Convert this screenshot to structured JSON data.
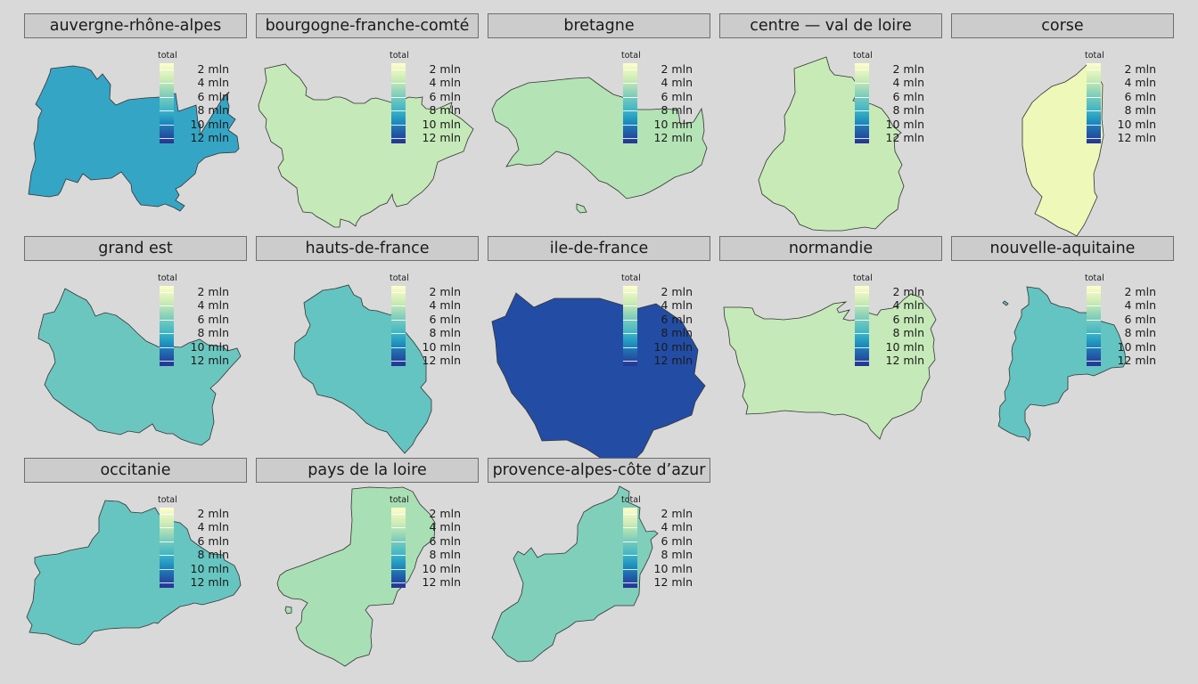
{
  "legend": {
    "title": "total",
    "labels": [
      "2 mln",
      "4 mln",
      "6 mln",
      "8 mln",
      "10 mln",
      "12 mln"
    ]
  },
  "colors": {
    "background": "#d9d9d9",
    "strip": "#cccccc",
    "outline": "#333333"
  },
  "regions": [
    {
      "name": "auvergne-rhône-alpes",
      "fill": "#35a5c5"
    },
    {
      "name": "bourgogne-franche-comté",
      "fill": "#c5e9b8"
    },
    {
      "name": "bretagne",
      "fill": "#b4e3b5"
    },
    {
      "name": "centre — val de loire",
      "fill": "#c8eab7"
    },
    {
      "name": "corse",
      "fill": "#edf8b9"
    },
    {
      "name": "grand est",
      "fill": "#6cc6c0"
    },
    {
      "name": "hauts-de-france",
      "fill": "#63c4c1"
    },
    {
      "name": "ile-de-france",
      "fill": "#234da4"
    },
    {
      "name": "normandie",
      "fill": "#c5e9b8"
    },
    {
      "name": "nouvelle-aquitaine",
      "fill": "#63c4c1"
    },
    {
      "name": "occitanie",
      "fill": "#66c5c1"
    },
    {
      "name": "pays de la loire",
      "fill": "#a9dfb5"
    },
    {
      "name": "provence-alpes-côte d’azur",
      "fill": "#7fcfbb"
    }
  ]
}
